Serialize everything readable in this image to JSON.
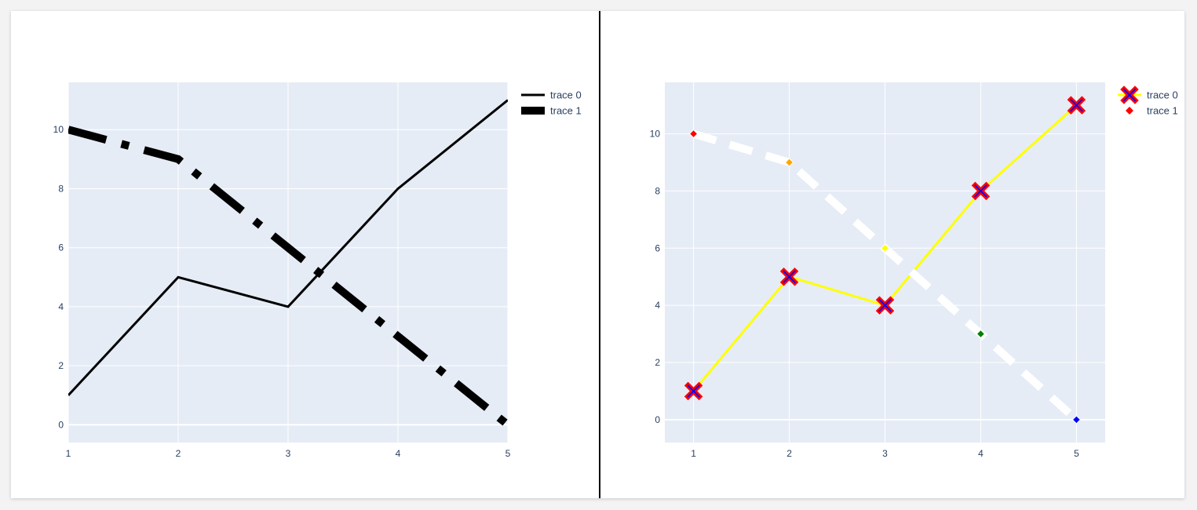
{
  "colors": {
    "plot_bg": "#e5ecf6",
    "grid": "#ffffff",
    "axis_text": "#2a3f5f",
    "divider": "#000000"
  },
  "chart_data": [
    {
      "type": "line",
      "x": [
        1,
        2,
        3,
        4,
        5
      ],
      "xlim": [
        1,
        5
      ],
      "ylim": [
        -0.6,
        11.6
      ],
      "x_ticks": [
        1,
        2,
        3,
        4,
        5
      ],
      "y_ticks": [
        0,
        2,
        4,
        6,
        8,
        10
      ],
      "grid": true,
      "legend_position": "top-right",
      "series": [
        {
          "name": "trace 0",
          "values": [
            1,
            5,
            4,
            8,
            11
          ],
          "color": "#000000",
          "dash": "solid"
        },
        {
          "name": "trace 1",
          "values": [
            10,
            9,
            6,
            3,
            0
          ],
          "color": "#000000",
          "dash": "dashdot"
        }
      ]
    },
    {
      "type": "scatter",
      "x": [
        1,
        2,
        3,
        4,
        5
      ],
      "xlim": [
        0.7,
        5.3
      ],
      "ylim": [
        -0.8,
        11.8
      ],
      "x_ticks": [
        1,
        2,
        3,
        4,
        5
      ],
      "y_ticks": [
        0,
        2,
        4,
        6,
        8,
        10
      ],
      "grid": true,
      "legend_position": "top-right",
      "series": [
        {
          "name": "trace 0",
          "values": [
            1,
            5,
            4,
            8,
            11
          ],
          "mode": "lines+markers",
          "line_color": "#ffff00",
          "marker": "x",
          "marker_color": "#0000ff",
          "marker_outline": "#ff0000"
        },
        {
          "name": "trace 1",
          "values": [
            10,
            9,
            6,
            3,
            0
          ],
          "mode": "lines+markers",
          "line_color": "#ffffff",
          "line_dash": "dash",
          "marker": "diamond",
          "marker_colors": [
            "#ff0000",
            "#ffa500",
            "#ffff00",
            "#008000",
            "#0000ff"
          ]
        }
      ]
    }
  ]
}
